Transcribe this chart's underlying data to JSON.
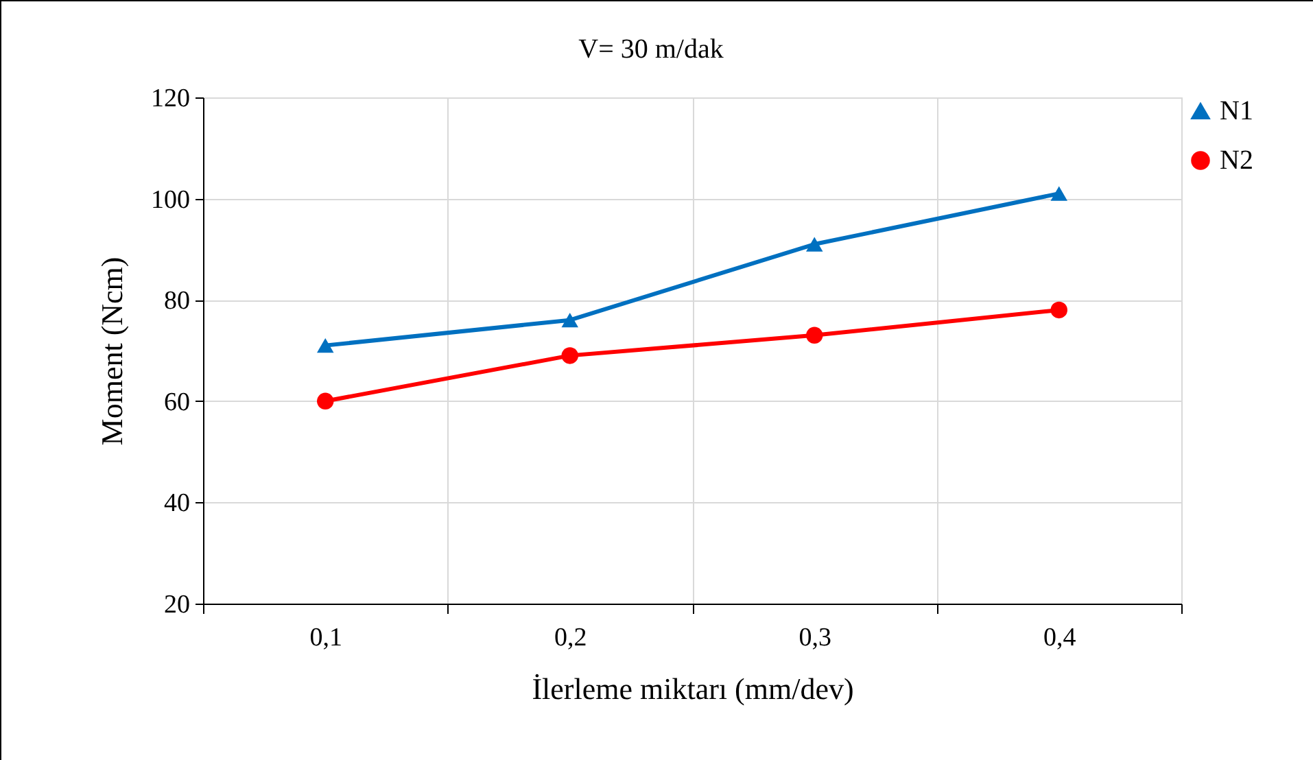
{
  "chart_data": {
    "type": "line",
    "title": "V= 30 m/dak",
    "xlabel": "İlerleme miktarı (mm/dev)",
    "ylabel": "Moment (Ncm)",
    "categories": [
      "0,1",
      "0,2",
      "0,3",
      "0,4"
    ],
    "series": [
      {
        "name": "N1",
        "color": "#0070c0",
        "marker": "triangle",
        "values": [
          71,
          76,
          91,
          101
        ]
      },
      {
        "name": "N2",
        "color": "#ff0000",
        "marker": "circle",
        "values": [
          60,
          69,
          73,
          78
        ]
      }
    ],
    "ylim": [
      20,
      120
    ],
    "yticks": [
      20,
      40,
      60,
      80,
      100,
      120
    ],
    "grid": true,
    "legend": "right",
    "line_style": "solid"
  }
}
